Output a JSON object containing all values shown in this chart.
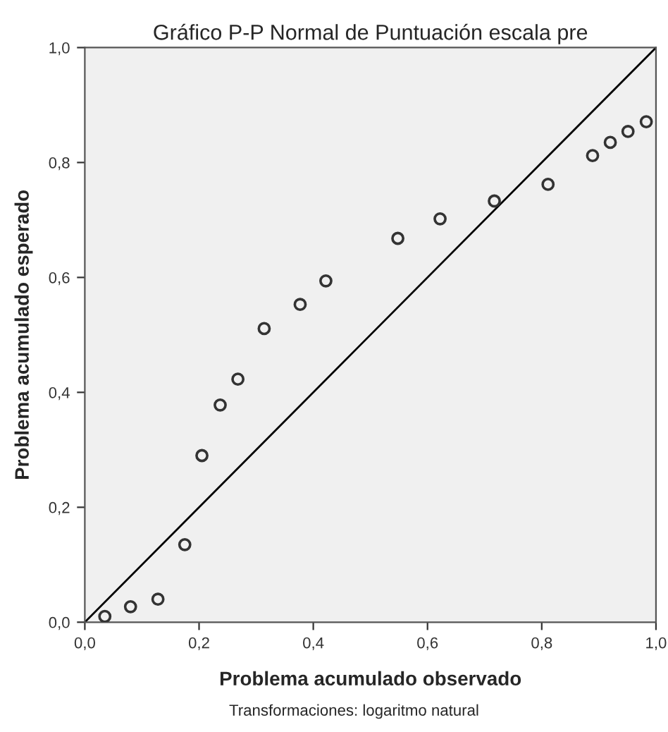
{
  "chart_data": {
    "type": "scatter",
    "title": "Gráfico P-P Normal de Puntuación escala pre",
    "xlabel": "Problema acumulado observado",
    "ylabel": "Problema acumulado esperado",
    "annotations": [
      "Transformaciones: logaritmo natural"
    ],
    "xlim": [
      0,
      1
    ],
    "ylim": [
      0,
      1
    ],
    "xticks": [
      {
        "value": 0,
        "label": "0,0"
      },
      {
        "value": 0.2,
        "label": "0,2"
      },
      {
        "value": 0.4,
        "label": "0,4"
      },
      {
        "value": 0.6,
        "label": "0,6"
      },
      {
        "value": 0.8,
        "label": "0,8"
      },
      {
        "value": 1,
        "label": "1,0"
      }
    ],
    "yticks": [
      {
        "value": 0,
        "label": "0,0"
      },
      {
        "value": 0.2,
        "label": "0,2"
      },
      {
        "value": 0.4,
        "label": "0,4"
      },
      {
        "value": 0.6,
        "label": "0,6"
      },
      {
        "value": 0.8,
        "label": "0,8"
      },
      {
        "value": 1,
        "label": "1,0"
      }
    ],
    "grid": false,
    "legend": false,
    "marker": "circle",
    "series": [
      {
        "color": "#333333",
        "x": [
          0.035,
          0.08,
          0.128,
          0.175,
          0.205,
          0.237,
          0.268,
          0.314,
          0.377,
          0.422,
          0.548,
          0.622,
          0.717,
          0.811,
          0.889,
          0.92,
          0.951,
          0.983
        ],
        "values": [
          0.01,
          0.027,
          0.04,
          0.135,
          0.29,
          0.378,
          0.423,
          0.511,
          0.553,
          0.594,
          0.668,
          0.702,
          0.733,
          0.762,
          0.812,
          0.835,
          0.854,
          0.871
        ]
      },
      {
        "type": "line",
        "color": "#000000",
        "marker": "none",
        "line_style": "solid",
        "x": [
          0,
          1
        ],
        "values": [
          0,
          1
        ]
      }
    ]
  }
}
